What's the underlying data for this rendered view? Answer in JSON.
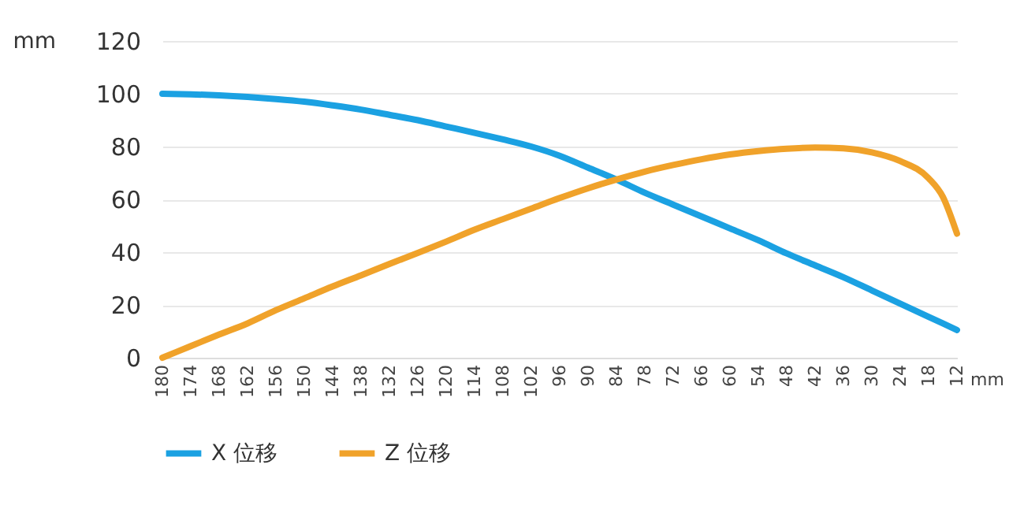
{
  "chart_data": {
    "type": "line",
    "xlabel": "mm",
    "ylabel": "mm",
    "x": [
      180,
      174,
      168,
      162,
      156,
      150,
      144,
      138,
      132,
      126,
      120,
      114,
      108,
      102,
      96,
      90,
      84,
      78,
      72,
      66,
      60,
      54,
      48,
      42,
      36,
      30,
      24,
      18,
      15,
      12
    ],
    "series": [
      {
        "name": "X 位移",
        "color": "#1ba1e2",
        "values": [
          100,
          99.8,
          99.4,
          98.8,
          98,
          97,
          95.6,
          94,
          92,
          90,
          87.6,
          85.2,
          82.7,
          80,
          76.5,
          72,
          67.5,
          62.5,
          58,
          53.5,
          49,
          44.5,
          39.5,
          35,
          30.5,
          25.5,
          20.5,
          15.5,
          13,
          10.5
        ]
      },
      {
        "name": "Z 位移",
        "color": "#f0a22a",
        "values": [
          0,
          4.4,
          8.8,
          13,
          18,
          22.5,
          27,
          31.2,
          35.5,
          39.7,
          44,
          48.5,
          52.5,
          56.5,
          60.5,
          64.2,
          67.5,
          70.5,
          73,
          75.2,
          77,
          78.3,
          79.2,
          79.6,
          79.3,
          77.8,
          74.5,
          68,
          61,
          47
        ]
      }
    ],
    "xlim": [
      180,
      12
    ],
    "xticks": [
      180,
      174,
      168,
      162,
      156,
      150,
      144,
      138,
      132,
      126,
      120,
      114,
      108,
      102,
      96,
      90,
      84,
      78,
      72,
      66,
      60,
      54,
      48,
      42,
      36,
      30,
      24,
      18,
      12
    ],
    "ylim": [
      0,
      120
    ],
    "yticks": [
      0,
      20,
      40,
      60,
      80,
      100,
      120
    ],
    "grid": "y",
    "legend": "bottom",
    "marker": "none",
    "line_style": "solid"
  }
}
